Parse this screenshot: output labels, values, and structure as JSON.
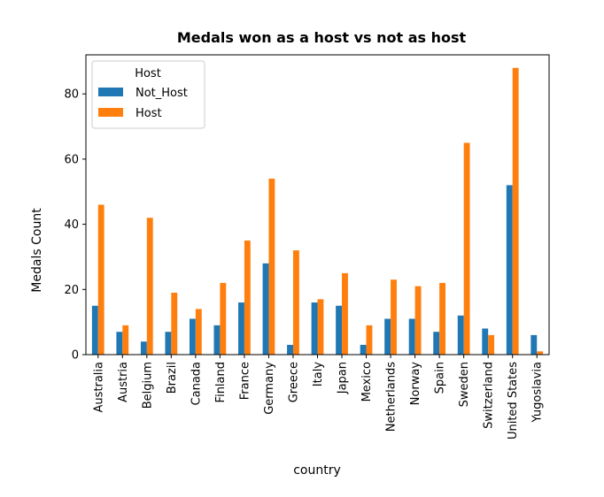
{
  "chart_data": {
    "type": "bar",
    "title": "Medals won as a host vs not as host",
    "xlabel": "country",
    "ylabel": "Medals Count",
    "ylim": [
      0,
      92
    ],
    "yticks": [
      0,
      20,
      40,
      60,
      80
    ],
    "grid": false,
    "legend": {
      "title": "Host",
      "placement": "top-left"
    },
    "categories": [
      "Australia",
      "Austria",
      "Belgium",
      "Brazil",
      "Canada",
      "Finland",
      "France",
      "Germany",
      "Greece",
      "Italy",
      "Japan",
      "Mexico",
      "Netherlands",
      "Norway",
      "Spain",
      "Sweden",
      "Switzerland",
      "United States",
      "Yugoslavia"
    ],
    "series": [
      {
        "name": "Not_Host",
        "color": "#1f77b4",
        "values": [
          15,
          7,
          4,
          7,
          11,
          9,
          16,
          28,
          3,
          16,
          15,
          3,
          11,
          11,
          7,
          12,
          8,
          52,
          6
        ]
      },
      {
        "name": "Host",
        "color": "#ff7f0e",
        "values": [
          46,
          9,
          42,
          19,
          14,
          22,
          35,
          54,
          32,
          17,
          25,
          9,
          23,
          21,
          22,
          65,
          6,
          88,
          1
        ]
      }
    ]
  }
}
